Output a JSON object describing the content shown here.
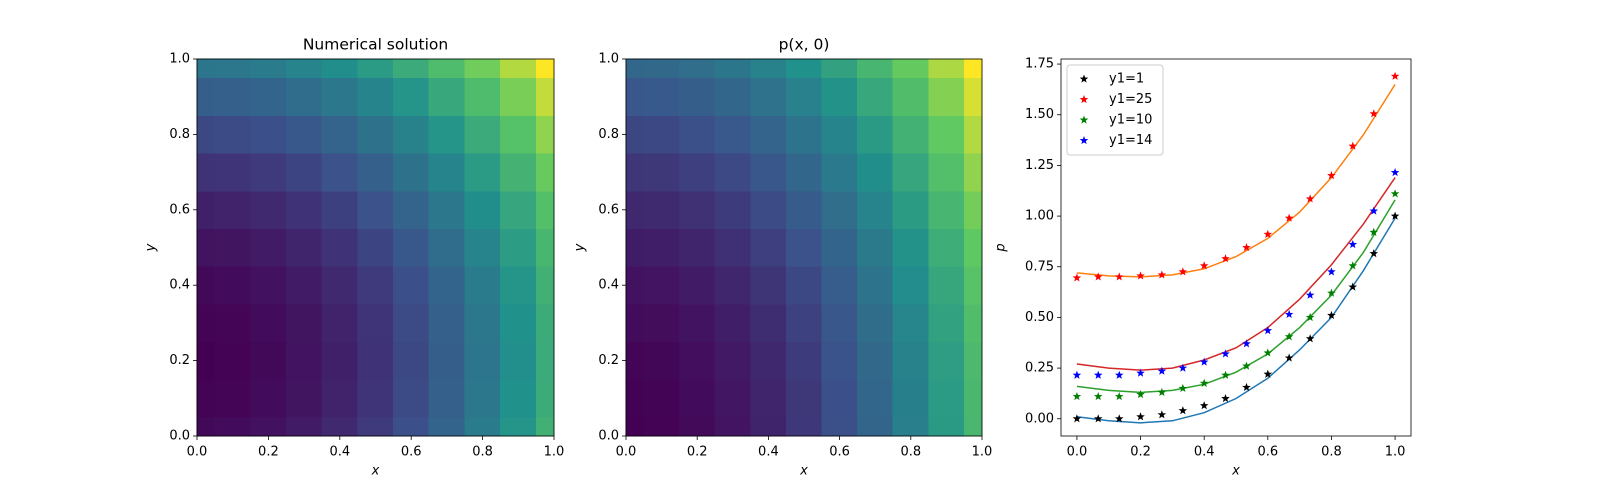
{
  "chart_data": [
    {
      "type": "contour",
      "title": "Numerical solution",
      "xlabel": "x",
      "ylabel": "y",
      "x": [
        0,
        0.1,
        0.2,
        0.3,
        0.4,
        0.5,
        0.6,
        0.7,
        0.8,
        0.9,
        1
      ],
      "y": [
        0,
        0.1,
        0.2,
        0.3,
        0.4,
        0.5,
        0.6,
        0.7,
        0.8,
        0.9,
        1
      ],
      "z": [
        [
          0.04,
          0.05,
          0.08,
          0.13,
          0.2,
          0.29,
          0.4,
          0.53,
          0.68,
          0.85,
          1.04
        ],
        [
          0.01,
          0.02,
          0.05,
          0.1,
          0.17,
          0.26,
          0.37,
          0.5,
          0.65,
          0.82,
          1.01
        ],
        [
          0,
          0.01,
          0.04,
          0.09,
          0.16,
          0.25,
          0.36,
          0.49,
          0.64,
          0.81,
          1
        ],
        [
          0.01,
          0.02,
          0.05,
          0.1,
          0.17,
          0.26,
          0.37,
          0.5,
          0.65,
          0.82,
          1.01
        ],
        [
          0.04,
          0.05,
          0.08,
          0.13,
          0.2,
          0.29,
          0.4,
          0.53,
          0.68,
          0.85,
          1.04
        ],
        [
          0.09,
          0.1,
          0.13,
          0.18,
          0.25,
          0.34,
          0.45,
          0.58,
          0.73,
          0.9,
          1.09
        ],
        [
          0.16,
          0.17,
          0.2,
          0.25,
          0.32,
          0.41,
          0.52,
          0.65,
          0.8,
          0.97,
          1.16
        ],
        [
          0.25,
          0.26,
          0.29,
          0.34,
          0.41,
          0.5,
          0.61,
          0.74,
          0.89,
          1.06,
          1.25
        ],
        [
          0.36,
          0.37,
          0.4,
          0.45,
          0.52,
          0.61,
          0.72,
          0.85,
          1,
          1.17,
          1.36
        ],
        [
          0.49,
          0.5,
          0.53,
          0.58,
          0.65,
          0.74,
          0.85,
          0.98,
          1.13,
          1.3,
          1.49
        ],
        [
          0.64,
          0.65,
          0.68,
          0.73,
          0.8,
          0.89,
          1,
          1.13,
          1.28,
          1.45,
          1.64
        ]
      ],
      "zlim": [
        0,
        1.64
      ],
      "colormap": [
        "#440154",
        "#3b528b",
        "#21918c",
        "#5ec962",
        "#fde725"
      ],
      "xlim": [
        0,
        1
      ],
      "ylim": [
        0,
        1
      ],
      "xticks": [
        {
          "value": 0,
          "label": "0.0"
        },
        0.2,
        0.4,
        0.6,
        0.8,
        {
          "value": 1,
          "label": "1.0"
        }
      ],
      "yticks": [
        {
          "value": 0,
          "label": "0.0"
        },
        0.2,
        0.4,
        0.6,
        0.8,
        {
          "value": 1,
          "label": "1.0"
        }
      ]
    },
    {
      "type": "contour",
      "title": "p(x, 0)",
      "xlabel": "x",
      "ylabel": "y",
      "x": [
        0,
        0.1,
        0.2,
        0.3,
        0.4,
        0.5,
        0.6,
        0.7,
        0.8,
        0.9,
        1
      ],
      "y": [
        0,
        0.1,
        0.2,
        0.3,
        0.4,
        0.5,
        0.6,
        0.7,
        0.8,
        0.9,
        1
      ],
      "z": [
        [
          0,
          0.01,
          0.04,
          0.09,
          0.16,
          0.25,
          0.36,
          0.49,
          0.64,
          0.81,
          1
        ],
        [
          0.005,
          0.015,
          0.045,
          0.095,
          0.165,
          0.255,
          0.365,
          0.495,
          0.645,
          0.815,
          1.005
        ],
        [
          0.02,
          0.03,
          0.06,
          0.11,
          0.18,
          0.27,
          0.38,
          0.51,
          0.66,
          0.83,
          1.02
        ],
        [
          0.045,
          0.055,
          0.085,
          0.135,
          0.205,
          0.295,
          0.405,
          0.535,
          0.685,
          0.855,
          1.045
        ],
        [
          0.08,
          0.09,
          0.12,
          0.17,
          0.24,
          0.33,
          0.44,
          0.57,
          0.72,
          0.89,
          1.08
        ],
        [
          0.125,
          0.135,
          0.165,
          0.215,
          0.285,
          0.375,
          0.485,
          0.615,
          0.765,
          0.935,
          1.125
        ],
        [
          0.18,
          0.19,
          0.22,
          0.27,
          0.34,
          0.43,
          0.54,
          0.67,
          0.82,
          0.99,
          1.18
        ],
        [
          0.245,
          0.255,
          0.285,
          0.335,
          0.405,
          0.495,
          0.605,
          0.735,
          0.885,
          1.055,
          1.245
        ],
        [
          0.32,
          0.33,
          0.36,
          0.41,
          0.48,
          0.57,
          0.68,
          0.81,
          0.96,
          1.13,
          1.32
        ],
        [
          0.405,
          0.415,
          0.445,
          0.495,
          0.565,
          0.655,
          0.765,
          0.895,
          1.045,
          1.215,
          1.405
        ],
        [
          0.5,
          0.51,
          0.54,
          0.59,
          0.66,
          0.75,
          0.86,
          0.99,
          1.14,
          1.31,
          1.5
        ]
      ],
      "zlim": [
        0,
        1.5
      ],
      "colormap": [
        "#440154",
        "#3b528b",
        "#21918c",
        "#5ec962",
        "#fde725"
      ],
      "xlim": [
        0,
        1
      ],
      "ylim": [
        0,
        1
      ],
      "xticks": [
        {
          "value": 0,
          "label": "0.0"
        },
        0.2,
        0.4,
        0.6,
        0.8,
        {
          "value": 1,
          "label": "1.0"
        }
      ],
      "yticks": [
        {
          "value": 0,
          "label": "0.0"
        },
        0.2,
        0.4,
        0.6,
        0.8,
        {
          "value": 1,
          "label": "1.0"
        }
      ]
    },
    {
      "type": "line_scatter",
      "xlabel": "x",
      "ylabel": "p",
      "legend": "upper left",
      "x": [
        0,
        0.067,
        0.133,
        0.2,
        0.267,
        0.333,
        0.4,
        0.467,
        0.533,
        0.6,
        0.667,
        0.733,
        0.8,
        0.867,
        0.933,
        1
      ],
      "series": [
        {
          "name": "y1=1",
          "color": "#000000",
          "values": [
            0,
            0,
            0,
            0.01,
            0.02,
            0.04,
            0.065,
            0.1,
            0.155,
            0.22,
            0.3,
            0.395,
            0.51,
            0.65,
            0.815,
            1.0
          ]
        },
        {
          "name": "y1=25",
          "color": "#ff0000",
          "values": [
            0.695,
            0.7,
            0.7,
            0.705,
            0.71,
            0.725,
            0.755,
            0.79,
            0.845,
            0.91,
            0.99,
            1.085,
            1.2,
            1.345,
            1.505,
            1.69
          ]
        },
        {
          "name": "y1=10",
          "color": "#008000",
          "values": [
            0.11,
            0.11,
            0.11,
            0.12,
            0.13,
            0.15,
            0.175,
            0.215,
            0.26,
            0.325,
            0.405,
            0.5,
            0.62,
            0.755,
            0.92,
            1.11
          ]
        },
        {
          "name": "y1=14",
          "color": "#0000ff",
          "values": [
            0.215,
            0.215,
            0.215,
            0.225,
            0.235,
            0.25,
            0.28,
            0.32,
            0.37,
            0.435,
            0.515,
            0.61,
            0.725,
            0.86,
            1.025,
            1.215
          ]
        }
      ],
      "line_x": [
        0,
        0.1,
        0.2,
        0.3,
        0.4,
        0.5,
        0.6,
        0.7,
        0.8,
        0.9,
        1
      ],
      "lines": [
        {
          "color": "#1f77b4",
          "values": [
            0.01,
            -0.01,
            -0.02,
            -0.01,
            0.03,
            0.1,
            0.2,
            0.34,
            0.5,
            0.73,
            0.99
          ]
        },
        {
          "color": "#ff7f0e",
          "values": [
            0.72,
            0.705,
            0.7,
            0.71,
            0.74,
            0.8,
            0.89,
            1.02,
            1.19,
            1.4,
            1.65
          ]
        },
        {
          "color": "#d62728",
          "values": [
            0.27,
            0.25,
            0.24,
            0.25,
            0.29,
            0.35,
            0.45,
            0.59,
            0.76,
            0.96,
            1.19
          ]
        },
        {
          "color": "#2ca02c",
          "values": [
            0.16,
            0.14,
            0.13,
            0.14,
            0.17,
            0.23,
            0.32,
            0.45,
            0.61,
            0.82,
            1.08
          ]
        }
      ],
      "xlim": [
        -0.05,
        1.05
      ],
      "ylim": [
        -0.085,
        1.775
      ],
      "xticks": [
        {
          "value": 0,
          "label": "0.0"
        },
        0.2,
        0.4,
        0.6,
        0.8,
        {
          "value": 1,
          "label": "1.0"
        }
      ],
      "yticks": [
        {
          "value": 0,
          "label": "0.00"
        },
        0.25,
        {
          "value": 0.5,
          "label": "0.50"
        },
        0.75,
        {
          "value": 1,
          "label": "1.00"
        },
        1.25,
        {
          "value": 1.5,
          "label": "1.50"
        },
        1.75
      ]
    }
  ]
}
